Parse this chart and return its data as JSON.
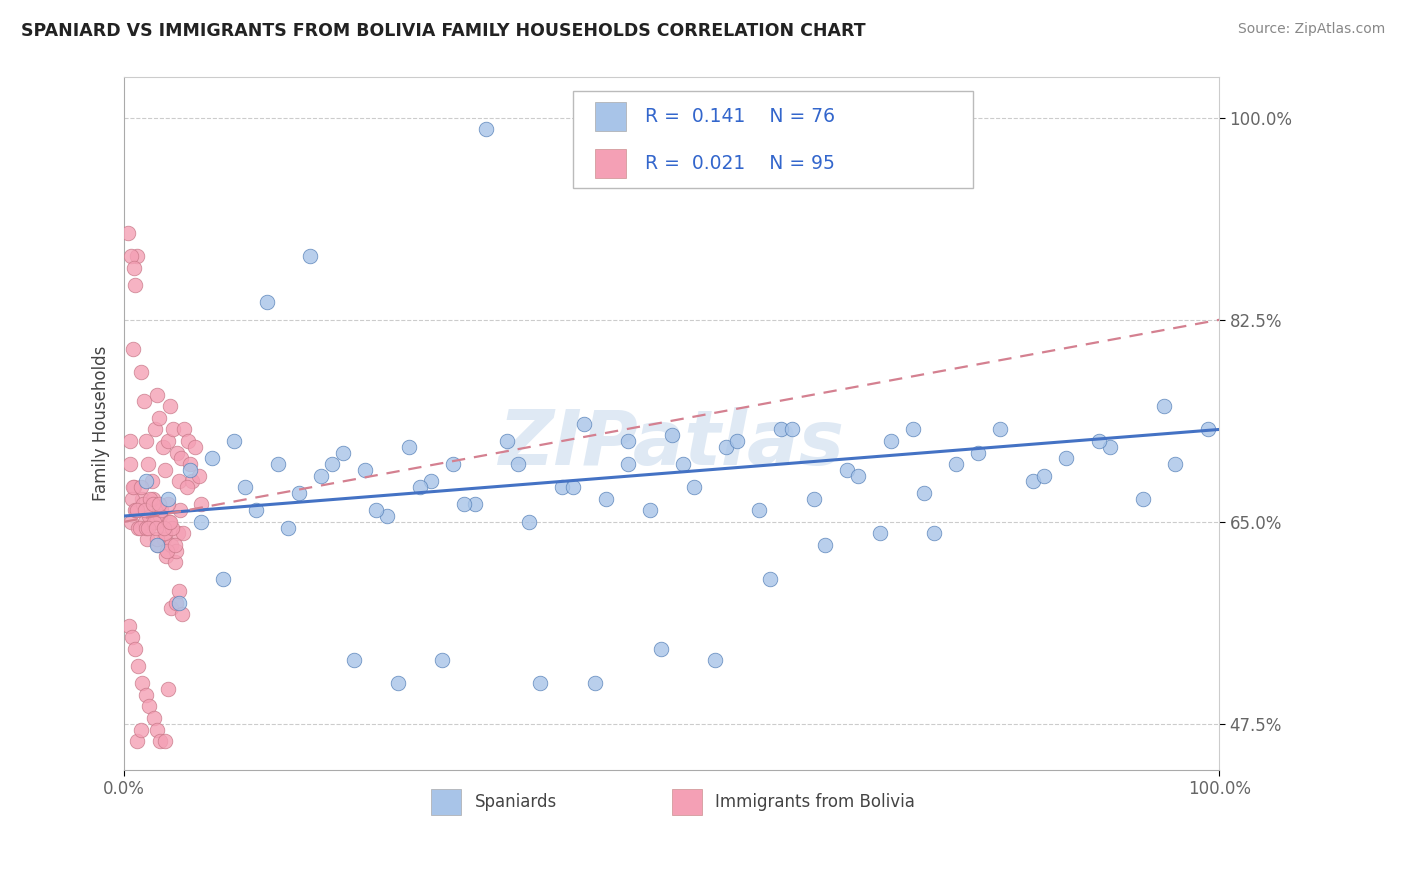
{
  "title": "SPANIARD VS IMMIGRANTS FROM BOLIVIA FAMILY HOUSEHOLDS CORRELATION CHART",
  "source": "Source: ZipAtlas.com",
  "ylabel": "Family Households",
  "watermark": "ZIPatlas",
  "legend1_label": "Spaniards",
  "legend2_label": "Immigrants from Bolivia",
  "r1": 0.141,
  "n1": 76,
  "r2": 0.021,
  "n2": 95,
  "color1": "#a8c4e8",
  "color2": "#f4a0b5",
  "trendline1_color": "#4472c4",
  "trendline2_color": "#d48090",
  "xlim": [
    0.0,
    1.0
  ],
  "ylim": [
    0.435,
    1.035
  ],
  "yticks": [
    0.475,
    0.65,
    0.825,
    1.0
  ],
  "ytick_labels": [
    "47.5%",
    "65.0%",
    "82.5%",
    "100.0%"
  ],
  "xtick_labels": [
    "0.0%",
    "100.0%"
  ],
  "xticks": [
    0.0,
    1.0
  ],
  "spaniards_x": [
    0.02,
    0.04,
    0.06,
    0.08,
    0.1,
    0.12,
    0.14,
    0.16,
    0.18,
    0.2,
    0.22,
    0.24,
    0.26,
    0.28,
    0.3,
    0.32,
    0.35,
    0.37,
    0.4,
    0.42,
    0.44,
    0.46,
    0.48,
    0.5,
    0.52,
    0.55,
    0.58,
    0.6,
    0.63,
    0.66,
    0.7,
    0.73,
    0.76,
    0.8,
    0.83,
    0.86,
    0.9,
    0.93,
    0.96,
    0.99,
    0.03,
    0.07,
    0.11,
    0.15,
    0.19,
    0.23,
    0.27,
    0.31,
    0.36,
    0.41,
    0.46,
    0.51,
    0.56,
    0.61,
    0.67,
    0.72,
    0.78,
    0.84,
    0.89,
    0.95,
    0.05,
    0.09,
    0.13,
    0.17,
    0.21,
    0.25,
    0.29,
    0.33,
    0.38,
    0.43,
    0.49,
    0.54,
    0.59,
    0.64,
    0.69,
    0.74
  ],
  "spaniards_y": [
    0.685,
    0.67,
    0.695,
    0.705,
    0.72,
    0.66,
    0.7,
    0.675,
    0.69,
    0.71,
    0.695,
    0.655,
    0.715,
    0.685,
    0.7,
    0.665,
    0.72,
    0.65,
    0.68,
    0.735,
    0.67,
    0.7,
    0.66,
    0.725,
    0.68,
    0.715,
    0.66,
    0.73,
    0.67,
    0.695,
    0.72,
    0.675,
    0.7,
    0.73,
    0.685,
    0.705,
    0.715,
    0.67,
    0.7,
    0.73,
    0.63,
    0.65,
    0.68,
    0.645,
    0.7,
    0.66,
    0.68,
    0.665,
    0.7,
    0.68,
    0.72,
    0.7,
    0.72,
    0.73,
    0.69,
    0.73,
    0.71,
    0.69,
    0.72,
    0.75,
    0.58,
    0.6,
    0.84,
    0.88,
    0.53,
    0.51,
    0.53,
    0.99,
    0.51,
    0.51,
    0.54,
    0.53,
    0.6,
    0.63,
    0.64,
    0.64
  ],
  "bolivia_x": [
    0.005,
    0.008,
    0.01,
    0.012,
    0.015,
    0.018,
    0.02,
    0.022,
    0.025,
    0.028,
    0.03,
    0.032,
    0.035,
    0.037,
    0.04,
    0.042,
    0.045,
    0.048,
    0.05,
    0.052,
    0.055,
    0.058,
    0.06,
    0.062,
    0.065,
    0.068,
    0.07,
    0.006,
    0.009,
    0.011,
    0.013,
    0.016,
    0.019,
    0.021,
    0.023,
    0.026,
    0.029,
    0.031,
    0.033,
    0.036,
    0.038,
    0.041,
    0.043,
    0.046,
    0.049,
    0.051,
    0.054,
    0.057,
    0.007,
    0.01,
    0.014,
    0.017,
    0.02,
    0.024,
    0.027,
    0.03,
    0.034,
    0.037,
    0.04,
    0.044,
    0.047,
    0.005,
    0.008,
    0.012,
    0.015,
    0.019,
    0.022,
    0.026,
    0.029,
    0.032,
    0.036,
    0.039,
    0.042,
    0.046,
    0.004,
    0.007,
    0.01,
    0.013,
    0.016,
    0.02,
    0.023,
    0.027,
    0.03,
    0.033,
    0.037,
    0.04,
    0.043,
    0.047,
    0.05,
    0.053,
    0.003,
    0.006,
    0.009,
    0.012,
    0.015
  ],
  "bolivia_y": [
    0.72,
    0.8,
    0.855,
    0.88,
    0.78,
    0.755,
    0.72,
    0.7,
    0.685,
    0.73,
    0.76,
    0.74,
    0.715,
    0.695,
    0.72,
    0.75,
    0.73,
    0.71,
    0.685,
    0.705,
    0.73,
    0.72,
    0.7,
    0.685,
    0.715,
    0.69,
    0.665,
    0.65,
    0.68,
    0.66,
    0.645,
    0.67,
    0.65,
    0.635,
    0.655,
    0.67,
    0.65,
    0.63,
    0.655,
    0.635,
    0.62,
    0.65,
    0.63,
    0.615,
    0.64,
    0.66,
    0.64,
    0.68,
    0.67,
    0.66,
    0.645,
    0.665,
    0.645,
    0.67,
    0.65,
    0.635,
    0.66,
    0.64,
    0.665,
    0.645,
    0.625,
    0.7,
    0.68,
    0.66,
    0.68,
    0.66,
    0.645,
    0.665,
    0.645,
    0.665,
    0.645,
    0.625,
    0.65,
    0.63,
    0.56,
    0.55,
    0.54,
    0.525,
    0.51,
    0.5,
    0.49,
    0.48,
    0.47,
    0.46,
    0.46,
    0.505,
    0.575,
    0.58,
    0.59,
    0.57,
    0.9,
    0.88,
    0.87,
    0.46,
    0.47
  ],
  "trendline1_x0": 0.0,
  "trendline1_x1": 1.0,
  "trendline1_y0": 0.655,
  "trendline1_y1": 0.73,
  "trendline2_x0": 0.0,
  "trendline2_x1": 1.0,
  "trendline2_y0": 0.65,
  "trendline2_y1": 0.825
}
